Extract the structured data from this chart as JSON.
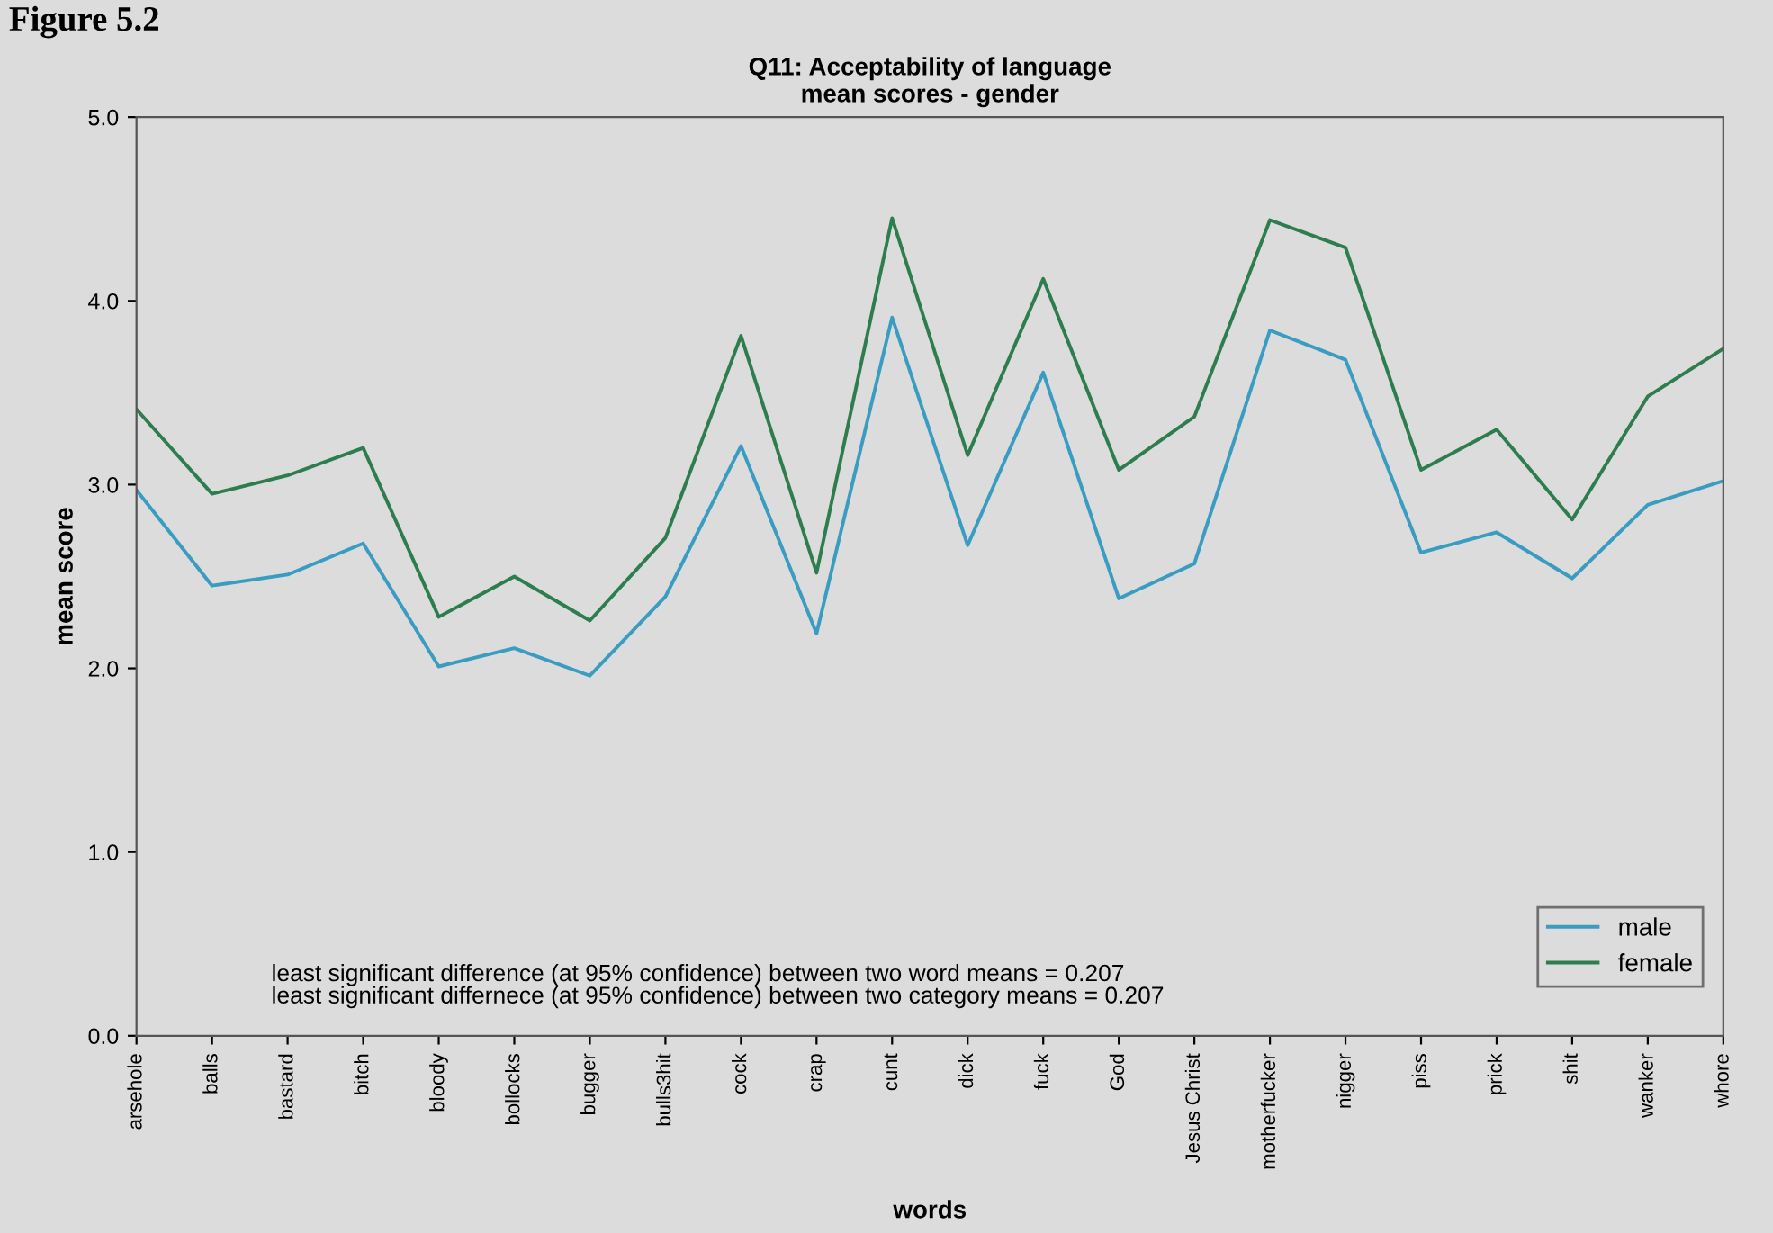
{
  "chart_data": {
    "type": "line",
    "title": "Q11: Acceptability of language\nmean scores - gender",
    "xlabel": "words",
    "ylabel": "mean score",
    "categories": [
      "arsehole",
      "balls",
      "bastard",
      "bitch",
      "bloody",
      "bollocks",
      "bugger",
      "bulls3hit",
      "cock",
      "crap",
      "cunt",
      "dick",
      "fuck",
      "God",
      "Jesus Christ",
      "motherfucker",
      "nigger",
      "piss",
      "prick",
      "shit",
      "wanker",
      "whore"
    ],
    "series": [
      {
        "name": "male",
        "color": "#3a9cc0",
        "values": [
          2.97,
          2.45,
          2.51,
          2.68,
          2.01,
          2.11,
          1.96,
          2.39,
          3.21,
          2.19,
          3.91,
          2.67,
          3.61,
          2.38,
          2.57,
          3.84,
          3.68,
          2.63,
          2.74,
          2.49,
          2.89,
          3.02
        ]
      },
      {
        "name": "female",
        "color": "#2e7d4f",
        "values": [
          3.41,
          2.95,
          3.05,
          3.2,
          2.28,
          2.5,
          2.26,
          2.71,
          3.81,
          2.52,
          4.45,
          3.16,
          4.12,
          3.08,
          3.37,
          4.44,
          4.29,
          3.08,
          3.3,
          2.81,
          3.48,
          3.74
        ]
      }
    ],
    "ylim": [
      0,
      5
    ],
    "yticks": [
      {
        "value": 0,
        "label": "0.0"
      },
      {
        "value": 1,
        "label": "1.0"
      },
      {
        "value": 2,
        "label": "2.0"
      },
      {
        "value": 3,
        "label": "3.0"
      },
      {
        "value": 4,
        "label": "4.0"
      },
      {
        "value": 5,
        "label": "5.0"
      }
    ],
    "grid": false,
    "legend": "bottom right",
    "marker": "none",
    "line_style": "solid",
    "annotations": [
      "Figure 5.2",
      "least significant difference (at 95% confidence) between two word means = 0.207\nleast significant differnece (at 95% confidence) between two category means = 0.207"
    ]
  }
}
